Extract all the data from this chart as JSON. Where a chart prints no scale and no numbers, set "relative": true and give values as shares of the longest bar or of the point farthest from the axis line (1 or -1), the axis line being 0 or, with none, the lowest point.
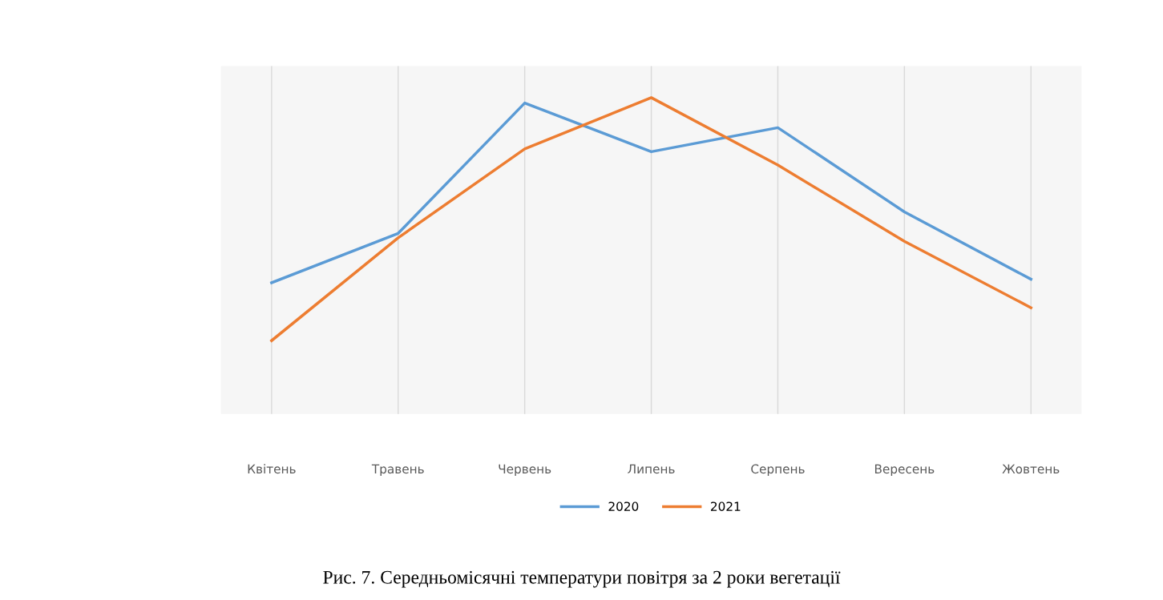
{
  "chart_data": {
    "type": "line",
    "relative": true,
    "categories": [
      "Квітень",
      "Травень",
      "Червень",
      "Липень",
      "Серпень",
      "Вересень",
      "Жовтень"
    ],
    "series": [
      {
        "name": "2020",
        "color": "#5b9bd5",
        "values": [
          0.415,
          0.571,
          0.983,
          0.829,
          0.905,
          0.639,
          0.426
        ]
      },
      {
        "name": "2021",
        "color": "#ed7d31",
        "values": [
          0.232,
          0.557,
          0.838,
          1.0,
          0.787,
          0.546,
          0.336
        ]
      }
    ],
    "grid": "x",
    "legend": "bottom",
    "marker": "none",
    "line_style": "solid",
    "annotations": [
      "Рис. 7. Середньомісячні температури повітря за 2 роки вегетації"
    ]
  }
}
